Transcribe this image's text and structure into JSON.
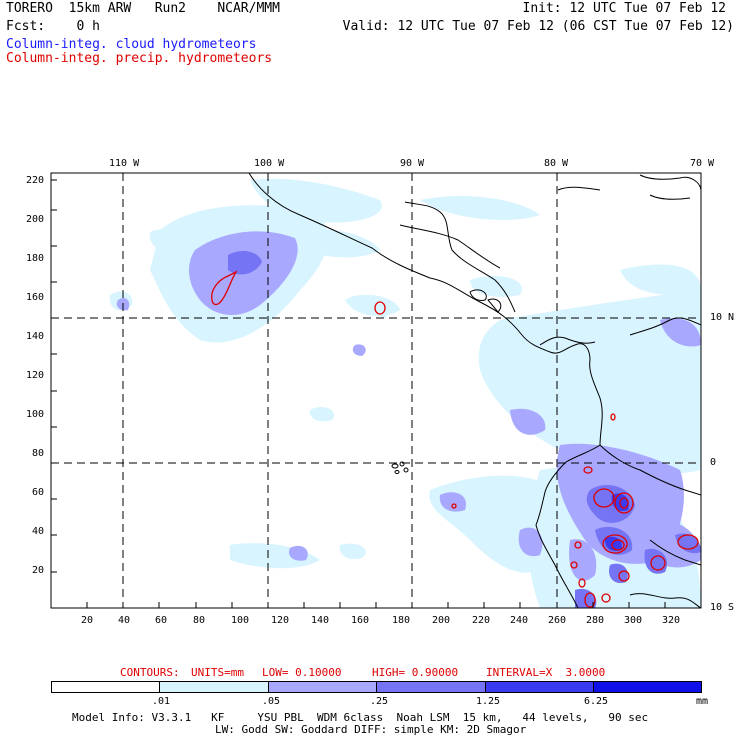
{
  "header": {
    "line1_left": "TORERO  15km ARW   Run2    NCAR/MMM",
    "line1_right": "Init: 12 UTC Tue 07 Feb 12",
    "line2_left": "Fcst:    0 h",
    "line2_right": "Valid: 12 UTC Tue 07 Feb 12 (06 CST Tue 07 Feb 12)",
    "field_cloud": "Column-integ. cloud hydrometeors",
    "field_precip": "Column-integ. precip. hydrometeors"
  },
  "map": {
    "lon_labels": [
      "110 W",
      "100 W",
      "90 W",
      "80 W",
      "70 W"
    ],
    "lat_labels": [
      "10 N",
      "0",
      "10 S"
    ],
    "x_ticks": [
      "20",
      "40",
      "60",
      "80",
      "100",
      "120",
      "140",
      "160",
      "180",
      "200",
      "220",
      "240",
      "260",
      "280",
      "300",
      "320"
    ],
    "y_ticks": [
      "220",
      "200",
      "180",
      "160",
      "140",
      "120",
      "100",
      "80",
      "60",
      "40",
      "20"
    ]
  },
  "contours": {
    "label": "CONTOURS:",
    "units": "UNITS=mm",
    "low": "LOW= 0.10000",
    "high": "HIGH= 0.90000",
    "interval": "INTERVAL=X  3.0000"
  },
  "colorbar": {
    "labels": [
      ".01",
      ".05",
      ".25",
      "1.25",
      "6.25"
    ],
    "unit": "mm",
    "colors": [
      "#ffffff",
      "#d8f4ff",
      "#a8a8ff",
      "#7474f4",
      "#3a3af0",
      "#1010e8"
    ]
  },
  "footer": {
    "model_info": "Model Info: V3.3.1   KF     YSU PBL  WDM 6class  Noah LSM  15 km,   44 levels,   90 sec",
    "physics": "LW: Godd SW: Goddard DIFF: simple KM: 2D Smagor"
  }
}
